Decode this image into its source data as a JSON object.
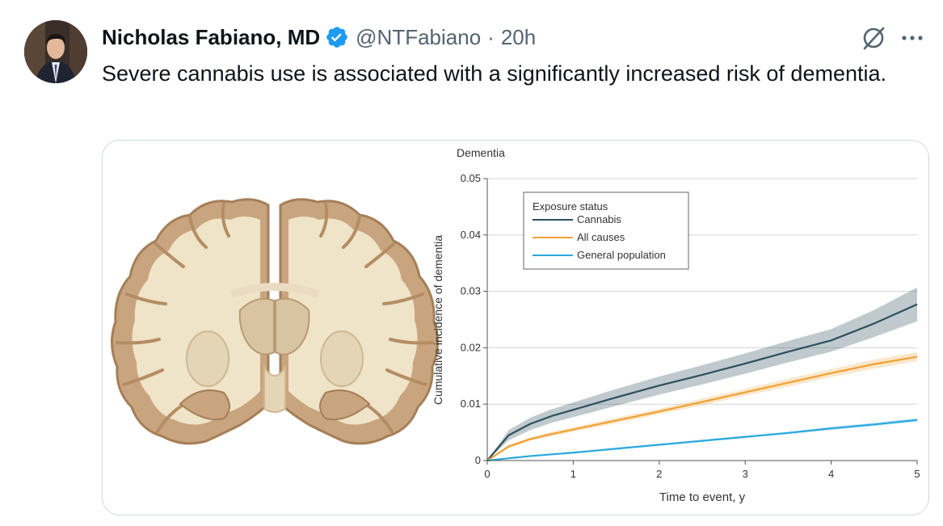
{
  "tweet": {
    "author_name": "Nicholas Fabiano, MD",
    "handle": "@NTFabiano",
    "separator": "·",
    "time": "20h",
    "text": "Severe cannabis use is associated with a significantly increased risk of dementia."
  },
  "icons": {
    "verified": "verified-badge-icon",
    "grok": "grok-icon",
    "more": "more-options-icon",
    "avatar": "avatar-photo"
  },
  "colors": {
    "verified_blue": "#1d9bf0",
    "cannabis": "#2e4f5c",
    "all_causes": "#f0a032",
    "general_population": "#29a8de"
  },
  "chart_data": {
    "type": "line",
    "title": "Dementia",
    "xlabel": "Time to event, y",
    "ylabel": "Cumulative incidence of dementia",
    "xlim": [
      0,
      5
    ],
    "ylim": [
      0,
      0.05
    ],
    "x_ticks": [
      "0",
      "1",
      "2",
      "3",
      "4",
      "5"
    ],
    "y_ticks": [
      "0",
      "0.01",
      "0.02",
      "0.03",
      "0.04",
      "0.05"
    ],
    "grid": "horizontal",
    "legend_title": "Exposure status",
    "legend_position": "top-left",
    "series": [
      {
        "name": "Cannabis",
        "color": "#2e4f5c",
        "x": [
          0,
          0.25,
          0.5,
          0.75,
          1,
          1.5,
          2,
          2.5,
          3,
          3.5,
          4,
          4.5,
          5
        ],
        "y": [
          0,
          0.0045,
          0.0065,
          0.0079,
          0.009,
          0.0112,
          0.0133,
          0.0152,
          0.0172,
          0.0193,
          0.0213,
          0.0243,
          0.0277
        ],
        "ci_halfwidth": [
          0,
          0.0009,
          0.0011,
          0.0012,
          0.0013,
          0.0015,
          0.0016,
          0.0017,
          0.0018,
          0.0019,
          0.002,
          0.0024,
          0.003
        ]
      },
      {
        "name": "All causes",
        "color": "#f0a032",
        "x": [
          0,
          0.25,
          0.5,
          0.75,
          1,
          1.5,
          2,
          2.5,
          3,
          3.5,
          4,
          4.5,
          5
        ],
        "y": [
          0,
          0.0025,
          0.0038,
          0.0047,
          0.0055,
          0.0071,
          0.0087,
          0.0104,
          0.0121,
          0.0138,
          0.0155,
          0.0171,
          0.0184
        ],
        "ci_halfwidth": [
          0,
          0.0003,
          0.0003,
          0.0004,
          0.0004,
          0.0005,
          0.0005,
          0.0006,
          0.0006,
          0.0007,
          0.0007,
          0.0008,
          0.0008
        ]
      },
      {
        "name": "General population",
        "color": "#29a8de",
        "x": [
          0,
          0.25,
          0.5,
          0.75,
          1,
          1.5,
          2,
          2.5,
          3,
          3.5,
          4,
          4.5,
          5
        ],
        "y": [
          0,
          0.0004,
          0.0008,
          0.0011,
          0.0014,
          0.0021,
          0.0028,
          0.0035,
          0.0042,
          0.0049,
          0.0057,
          0.0064,
          0.0072
        ],
        "ci_halfwidth": [
          0,
          0.0001,
          0.0001,
          0.0001,
          0.0001,
          0.0002,
          0.0002,
          0.0002,
          0.0002,
          0.0002,
          0.0003,
          0.0003,
          0.0003
        ]
      }
    ]
  }
}
